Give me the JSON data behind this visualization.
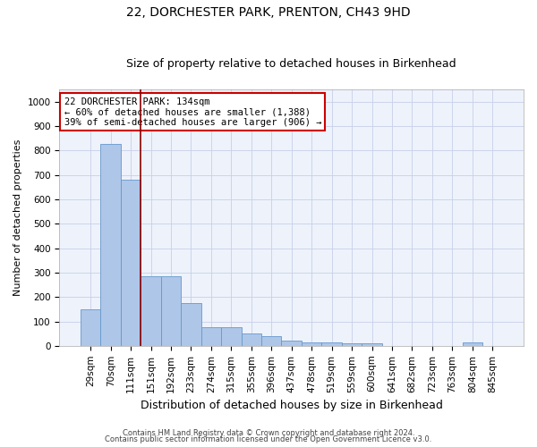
{
  "title": "22, DORCHESTER PARK, PRENTON, CH43 9HD",
  "subtitle": "Size of property relative to detached houses in Birkenhead",
  "xlabel": "Distribution of detached houses by size in Birkenhead",
  "ylabel": "Number of detached properties",
  "bar_color": "#aec6e8",
  "bar_edge_color": "#6699cc",
  "vline_color": "#8b0000",
  "vline_x_index": 2.5,
  "categories": [
    "29sqm",
    "70sqm",
    "111sqm",
    "151sqm",
    "192sqm",
    "233sqm",
    "274sqm",
    "315sqm",
    "355sqm",
    "396sqm",
    "437sqm",
    "478sqm",
    "519sqm",
    "559sqm",
    "600sqm",
    "641sqm",
    "682sqm",
    "723sqm",
    "763sqm",
    "804sqm",
    "845sqm"
  ],
  "values": [
    150,
    825,
    680,
    285,
    285,
    175,
    78,
    78,
    52,
    40,
    22,
    14,
    14,
    11,
    11,
    0,
    0,
    0,
    0,
    14,
    0
  ],
  "ylim": [
    0,
    1050
  ],
  "yticks": [
    0,
    100,
    200,
    300,
    400,
    500,
    600,
    700,
    800,
    900,
    1000
  ],
  "annotation_lines": [
    "22 DORCHESTER PARK: 134sqm",
    "← 60% of detached houses are smaller (1,388)",
    "39% of semi-detached houses are larger (906) →"
  ],
  "footer_line1": "Contains HM Land Registry data © Crown copyright and database right 2024.",
  "footer_line2": "Contains public sector information licensed under the Open Government Licence v3.0.",
  "background_color": "#eef2fb",
  "grid_color": "#c8d0e8",
  "title_fontsize": 10,
  "subtitle_fontsize": 9,
  "ylabel_fontsize": 8,
  "xlabel_fontsize": 9,
  "tick_fontsize": 7.5,
  "annotation_fontsize": 7.5,
  "footer_fontsize": 6
}
